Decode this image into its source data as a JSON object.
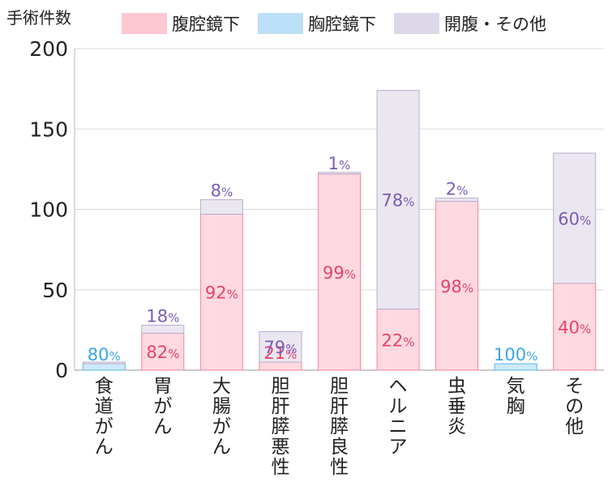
{
  "chart_data": {
    "type": "bar",
    "stacked": true,
    "ylabel": "手術件数",
    "xlabel": "",
    "title": "",
    "ylim": [
      0,
      200
    ],
    "yticks": [
      0,
      50,
      100,
      150,
      200
    ],
    "grid": true,
    "legend_position": "top",
    "categories": [
      "食道がん",
      "胃がん",
      "大腸がん",
      "胆肝膵悪性",
      "胆肝膵良性",
      "ヘルニア",
      "虫垂炎",
      "気胸",
      "その他"
    ],
    "series": [
      {
        "name": "腹腔鏡下",
        "color": "#ffd9e1",
        "edge": "#ff7f9a",
        "label_color": "#e8416b",
        "values": [
          0,
          23,
          97,
          5,
          122,
          38,
          105,
          0,
          54
        ],
        "labels": [
          "",
          "82",
          "92",
          "21",
          "99",
          "22",
          "98",
          "",
          "40"
        ]
      },
      {
        "name": "胸腔鏡下",
        "color": "#cde9fb",
        "edge": "#5bb5ef",
        "label_color": "#39a6e8",
        "values": [
          4,
          0,
          0,
          0,
          0,
          0,
          0,
          4,
          0
        ],
        "labels": [
          "80",
          "",
          "",
          "",
          "",
          "",
          "",
          "100",
          ""
        ]
      },
      {
        "name": "開腹・その他",
        "color": "#ebe7f1",
        "edge": "#b9aecd",
        "label_color": "#7b5cb4",
        "values": [
          1,
          5,
          9,
          19,
          1,
          136,
          2,
          0,
          81
        ],
        "labels": [
          "",
          "18",
          "8",
          "79",
          "1",
          "78",
          "2",
          "",
          "60"
        ]
      }
    ]
  }
}
